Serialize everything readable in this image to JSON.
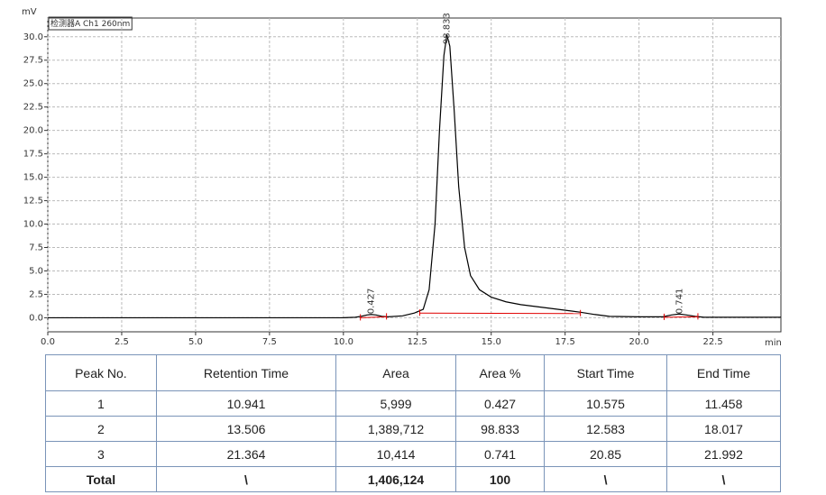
{
  "chart_data": {
    "type": "line",
    "title": "检测器A Ch1 260nm",
    "ylabel": "mV",
    "xlabel": "min",
    "color": "#000000",
    "baseline_color": "#e00000",
    "grid": true,
    "xlim": [
      0,
      24.8
    ],
    "ylim": [
      -1.5,
      32
    ],
    "xticks": [
      {
        "value": 0,
        "label": "0.0"
      },
      2.5,
      {
        "value": 5,
        "label": "5.0"
      },
      7.5,
      {
        "value": 10,
        "label": "10.0"
      },
      12.5,
      {
        "value": 15,
        "label": "15.0"
      },
      17.5,
      {
        "value": 20,
        "label": "20.0"
      },
      22.5
    ],
    "yticks": [
      {
        "value": 0,
        "label": "0.0"
      },
      2.5,
      {
        "value": 5,
        "label": "5.0"
      },
      7.5,
      {
        "value": 10,
        "label": "10.0"
      },
      12.5,
      {
        "value": 15,
        "label": "15.0"
      },
      17.5,
      {
        "value": 20,
        "label": "20.0"
      },
      22.5,
      {
        "value": 25,
        "label": "25.0"
      },
      27.5,
      {
        "value": 30,
        "label": "30.0"
      }
    ],
    "x": [
      0,
      10.0,
      10.4,
      10.6,
      10.8,
      10.94,
      11.1,
      11.3,
      11.5,
      12.0,
      12.4,
      12.7,
      12.9,
      13.1,
      13.25,
      13.4,
      13.5,
      13.6,
      13.75,
      13.9,
      14.1,
      14.3,
      14.6,
      15.0,
      15.5,
      16.0,
      17.0,
      18.0,
      18.5,
      19.0,
      20.0,
      20.8,
      21.1,
      21.36,
      21.6,
      21.9,
      22.2,
      24.8
    ],
    "values": [
      0,
      0,
      0.05,
      0.15,
      0.3,
      0.35,
      0.3,
      0.15,
      0.1,
      0.2,
      0.5,
      0.9,
      3,
      10,
      20,
      28,
      30.2,
      29,
      22,
      14,
      7.5,
      4.5,
      3,
      2.2,
      1.7,
      1.4,
      1,
      0.6,
      0.35,
      0.15,
      0.1,
      0.1,
      0.3,
      0.4,
      0.3,
      0.15,
      0.05,
      0.05
    ],
    "baselines": [
      {
        "x": [
          10.575,
          11.458
        ],
        "y": [
          0,
          0.1
        ]
      },
      {
        "x": [
          12.583,
          18.017
        ],
        "y": [
          0.5,
          0.45
        ]
      },
      {
        "x": [
          20.85,
          21.992
        ],
        "y": [
          0.05,
          0.1
        ]
      }
    ],
    "annotations": [
      {
        "text": "0.427",
        "x": 10.941,
        "y": 0.4
      },
      {
        "text": "98.833",
        "x": 13.506,
        "y": 29.2
      },
      {
        "text": "0.741",
        "x": 21.364,
        "y": 0.4
      }
    ]
  },
  "table": {
    "header": [
      "Peak No.",
      "Retention Time",
      "Area",
      "Area %",
      "Start Time",
      "End Time"
    ],
    "rows": [
      [
        "1",
        "10.941",
        "5,999",
        "0.427",
        "10.575",
        "11.458"
      ],
      [
        "2",
        "13.506",
        "1,389,712",
        "98.833",
        "12.583",
        "18.017"
      ],
      [
        "3",
        "21.364",
        "10,414",
        "0.741",
        "20.85",
        "21.992"
      ]
    ],
    "total": [
      "Total",
      "\\",
      "1,406,124",
      "100",
      "\\",
      "\\"
    ]
  }
}
